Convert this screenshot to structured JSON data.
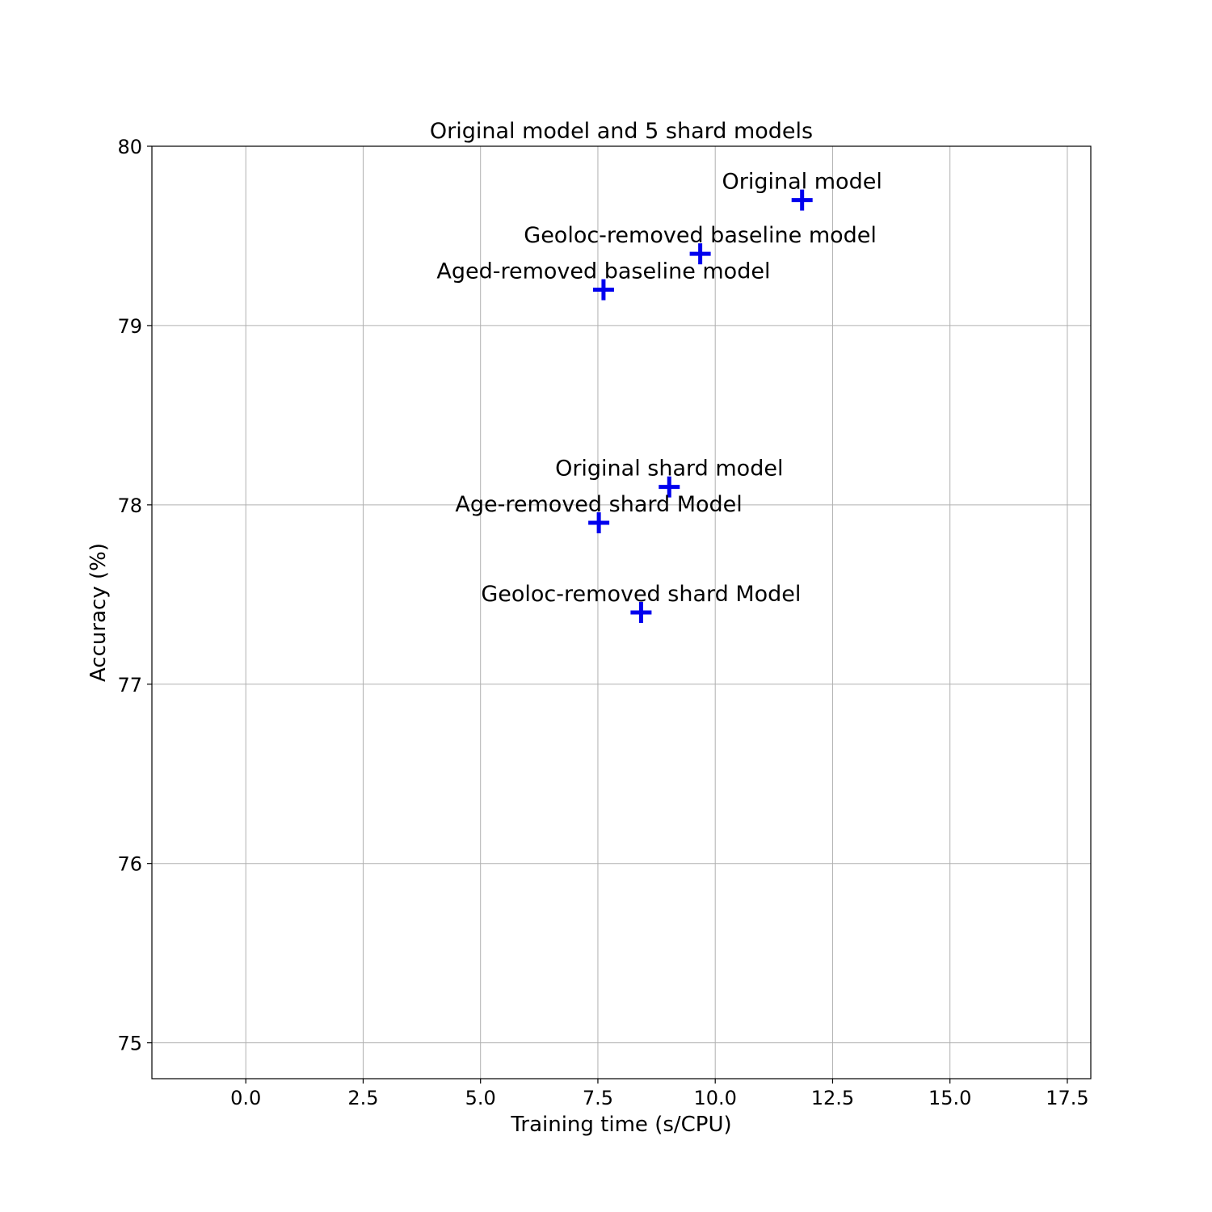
{
  "chart_data": {
    "type": "scatter",
    "title": "Original model and 5 shard models",
    "xlabel": "Training time (s/CPU)",
    "ylabel": "Accuracy (%)",
    "xlim": [
      -2.0,
      18.0
    ],
    "ylim": [
      74.8,
      80.0
    ],
    "xticks": [
      0.0,
      2.5,
      5.0,
      7.5,
      10.0,
      12.5,
      15.0,
      17.5
    ],
    "xtick_labels": [
      "0.0",
      "2.5",
      "5.0",
      "7.5",
      "10.0",
      "12.5",
      "15.0",
      "17.5"
    ],
    "yticks": [
      75,
      76,
      77,
      78,
      79,
      80
    ],
    "ytick_labels": [
      "75",
      "76",
      "77",
      "78",
      "79",
      "80"
    ],
    "grid": true,
    "marker_color": "#0000ee",
    "marker": "plus",
    "points": [
      {
        "label": "Original model",
        "x": 11.85,
        "y": 79.7
      },
      {
        "label": "Geoloc-removed baseline model",
        "x": 9.68,
        "y": 79.4
      },
      {
        "label": "Aged-removed baseline model",
        "x": 7.62,
        "y": 79.2
      },
      {
        "label": "Original shard model",
        "x": 9.02,
        "y": 78.1
      },
      {
        "label": "Age-removed shard Model",
        "x": 7.52,
        "y": 77.9
      },
      {
        "label": "Geoloc-removed shard Model",
        "x": 8.42,
        "y": 77.4
      }
    ]
  }
}
